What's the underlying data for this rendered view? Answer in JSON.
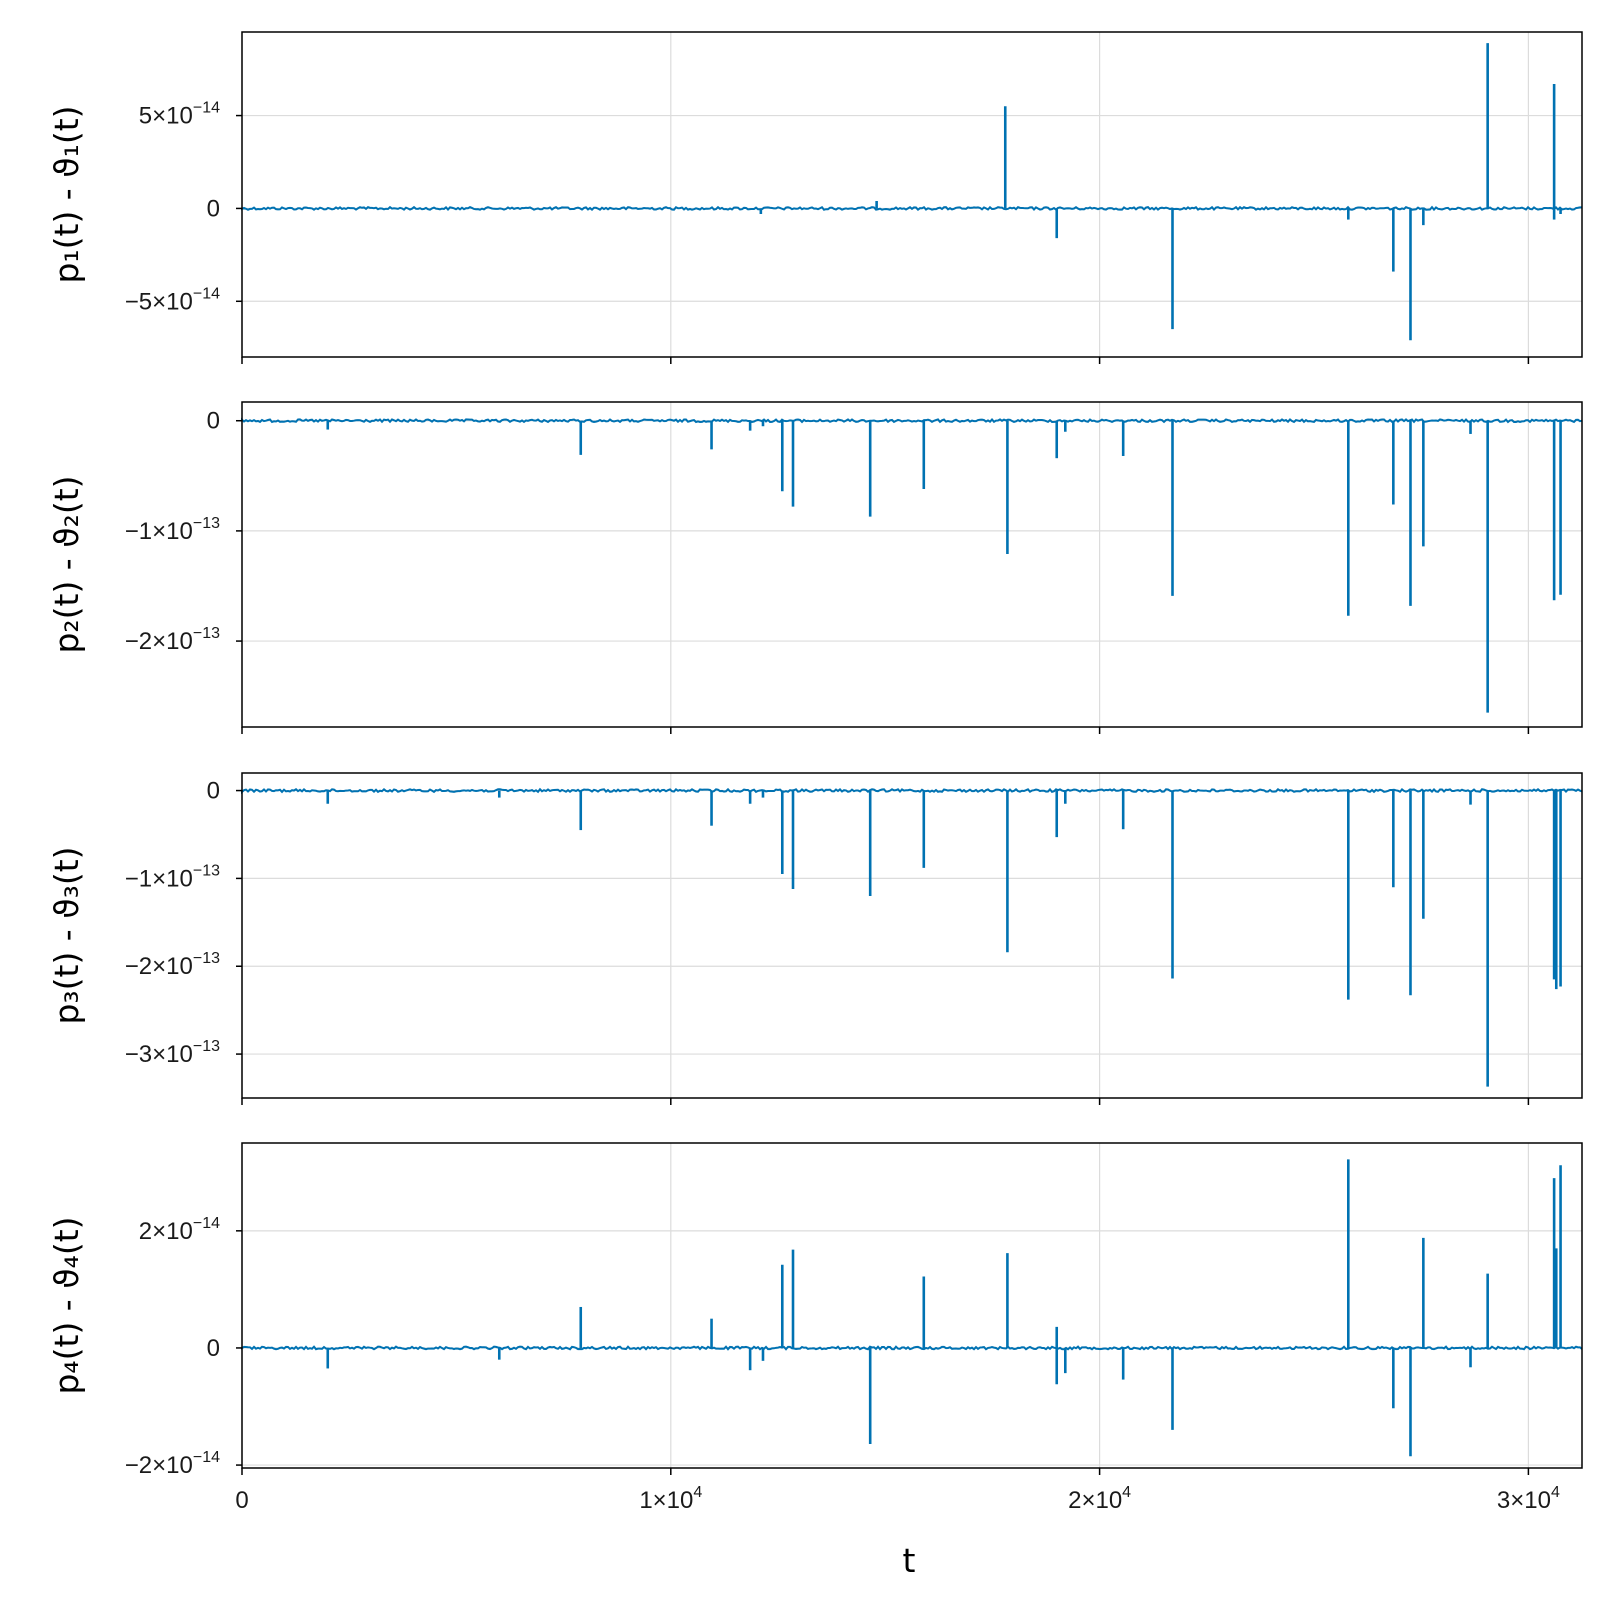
{
  "chart_data": {
    "type": "line",
    "xlabel": "t",
    "xlim": [
      0,
      31250
    ],
    "x_ticks": [
      {
        "value": 0,
        "label": "0"
      },
      {
        "value": 10000,
        "label": "1×10",
        "exp": "4"
      },
      {
        "value": 20000,
        "label": "2×10",
        "exp": "4"
      },
      {
        "value": 30000,
        "label": "3×10",
        "exp": "4"
      }
    ],
    "grid": true,
    "line_color": "#0072b2",
    "panels": [
      {
        "ylabel": "p₁(t) - ϑ₁(t)",
        "ylim": [
          -8e-14,
          9.5e-14
        ],
        "y_ticks": [
          {
            "value": 5e-14,
            "label": "5×10",
            "exp": "−14"
          },
          {
            "value": 0,
            "label": "0",
            "exp": ""
          },
          {
            "value": -5e-14,
            "label": "−5×10",
            "exp": "−14"
          }
        ],
        "spikes": [
          {
            "t": 12100,
            "v": -3e-15
          },
          {
            "t": 14800,
            "v": 4e-15
          },
          {
            "t": 17800,
            "v": 5.5e-14
          },
          {
            "t": 19000,
            "v": -1.6e-14
          },
          {
            "t": 21700,
            "v": -6.5e-14
          },
          {
            "t": 25800,
            "v": -6e-15
          },
          {
            "t": 26850,
            "v": -3.4e-14
          },
          {
            "t": 27250,
            "v": -7.1e-14
          },
          {
            "t": 27550,
            "v": -9e-15
          },
          {
            "t": 29050,
            "v": 8.9e-14
          },
          {
            "t": 30600,
            "v": 6.7e-14
          },
          {
            "t": 30600,
            "v": -6e-15
          },
          {
            "t": 30750,
            "v": -3e-15
          }
        ]
      },
      {
        "ylabel": "p₂(t) - ϑ₂(t)",
        "ylim": [
          -2.78e-13,
          1.7e-14
        ],
        "y_ticks": [
          {
            "value": 0,
            "label": "0",
            "exp": ""
          },
          {
            "value": -1e-13,
            "label": "−1×10",
            "exp": "−13"
          },
          {
            "value": -2e-13,
            "label": "−2×10",
            "exp": "−13"
          }
        ],
        "spikes": [
          {
            "t": 2000,
            "v": -8e-15
          },
          {
            "t": 7900,
            "v": -3.1e-14
          },
          {
            "t": 10950,
            "v": -2.6e-14
          },
          {
            "t": 11850,
            "v": -9e-15
          },
          {
            "t": 12150,
            "v": -5e-15
          },
          {
            "t": 12600,
            "v": -6.4e-14
          },
          {
            "t": 12850,
            "v": -7.8e-14
          },
          {
            "t": 14650,
            "v": -8.7e-14
          },
          {
            "t": 15900,
            "v": -6.2e-14
          },
          {
            "t": 17850,
            "v": -1.21e-13
          },
          {
            "t": 19000,
            "v": -3.4e-14
          },
          {
            "t": 19200,
            "v": -1e-14
          },
          {
            "t": 20550,
            "v": -3.2e-14
          },
          {
            "t": 21700,
            "v": -1.59e-13
          },
          {
            "t": 25800,
            "v": -1.77e-13
          },
          {
            "t": 26850,
            "v": -7.6e-14
          },
          {
            "t": 27250,
            "v": -1.68e-13
          },
          {
            "t": 27550,
            "v": -1.14e-13
          },
          {
            "t": 28650,
            "v": -1.2e-14
          },
          {
            "t": 29050,
            "v": -2.65e-13
          },
          {
            "t": 30600,
            "v": -1.63e-13
          },
          {
            "t": 30750,
            "v": -1.58e-13
          }
        ]
      },
      {
        "ylabel": "p₃(t) - ϑ₃(t)",
        "ylim": [
          -3.5e-13,
          2e-14
        ],
        "y_ticks": [
          {
            "value": 0,
            "label": "0",
            "exp": ""
          },
          {
            "value": -1e-13,
            "label": "−1×10",
            "exp": "−13"
          },
          {
            "value": -2e-13,
            "label": "−2×10",
            "exp": "−13"
          },
          {
            "value": -3e-13,
            "label": "−3×10",
            "exp": "−13"
          }
        ],
        "spikes": [
          {
            "t": 2000,
            "v": -1.5e-14
          },
          {
            "t": 6000,
            "v": -8e-15
          },
          {
            "t": 7900,
            "v": -4.5e-14
          },
          {
            "t": 10950,
            "v": -4e-14
          },
          {
            "t": 11850,
            "v": -1.5e-14
          },
          {
            "t": 12150,
            "v": -8e-15
          },
          {
            "t": 12600,
            "v": -9.5e-14
          },
          {
            "t": 12850,
            "v": -1.12e-13
          },
          {
            "t": 14650,
            "v": -1.2e-13
          },
          {
            "t": 15900,
            "v": -8.8e-14
          },
          {
            "t": 17850,
            "v": -1.84e-13
          },
          {
            "t": 19000,
            "v": -5.3e-14
          },
          {
            "t": 19200,
            "v": -1.5e-14
          },
          {
            "t": 20550,
            "v": -4.4e-14
          },
          {
            "t": 21700,
            "v": -2.14e-13
          },
          {
            "t": 25800,
            "v": -2.38e-13
          },
          {
            "t": 26850,
            "v": -1.1e-13
          },
          {
            "t": 27250,
            "v": -2.33e-13
          },
          {
            "t": 27550,
            "v": -1.46e-13
          },
          {
            "t": 28650,
            "v": -1.6e-14
          },
          {
            "t": 29050,
            "v": -3.37e-13
          },
          {
            "t": 30600,
            "v": -2.15e-13
          },
          {
            "t": 30650,
            "v": -2.26e-13
          },
          {
            "t": 30750,
            "v": -2.23e-13
          }
        ]
      },
      {
        "ylabel": "p₄(t) - ϑ₄(t)",
        "ylim": [
          -2.05e-14,
          3.5e-14
        ],
        "y_ticks": [
          {
            "value": 2e-14,
            "label": "2×10",
            "exp": "−14"
          },
          {
            "value": 0,
            "label": "0",
            "exp": ""
          },
          {
            "value": -2e-14,
            "label": "−2×10",
            "exp": "−14"
          }
        ],
        "spikes": [
          {
            "t": 2000,
            "v": -3.5e-15
          },
          {
            "t": 6000,
            "v": -2e-15
          },
          {
            "t": 7900,
            "v": 7e-15
          },
          {
            "t": 10950,
            "v": 5e-15
          },
          {
            "t": 11850,
            "v": -3.8e-15
          },
          {
            "t": 12150,
            "v": -2.2e-15
          },
          {
            "t": 12600,
            "v": 1.42e-14
          },
          {
            "t": 12850,
            "v": 1.68e-14
          },
          {
            "t": 14650,
            "v": -1.64e-14
          },
          {
            "t": 15900,
            "v": 1.22e-14
          },
          {
            "t": 17850,
            "v": 1.62e-14
          },
          {
            "t": 19000,
            "v": 3.6e-15
          },
          {
            "t": 19000,
            "v": -6.2e-15
          },
          {
            "t": 19200,
            "v": -4.3e-15
          },
          {
            "t": 20550,
            "v": -5.4e-15
          },
          {
            "t": 21700,
            "v": -1.4e-14
          },
          {
            "t": 25800,
            "v": 3.22e-14
          },
          {
            "t": 26850,
            "v": -1.03e-14
          },
          {
            "t": 27250,
            "v": -1.85e-14
          },
          {
            "t": 27550,
            "v": 1.88e-14
          },
          {
            "t": 28650,
            "v": -3.3e-15
          },
          {
            "t": 29050,
            "v": 1.27e-14
          },
          {
            "t": 30600,
            "v": 2.9e-14
          },
          {
            "t": 30650,
            "v": 1.7e-14
          },
          {
            "t": 30750,
            "v": 3.12e-14
          }
        ]
      }
    ]
  }
}
